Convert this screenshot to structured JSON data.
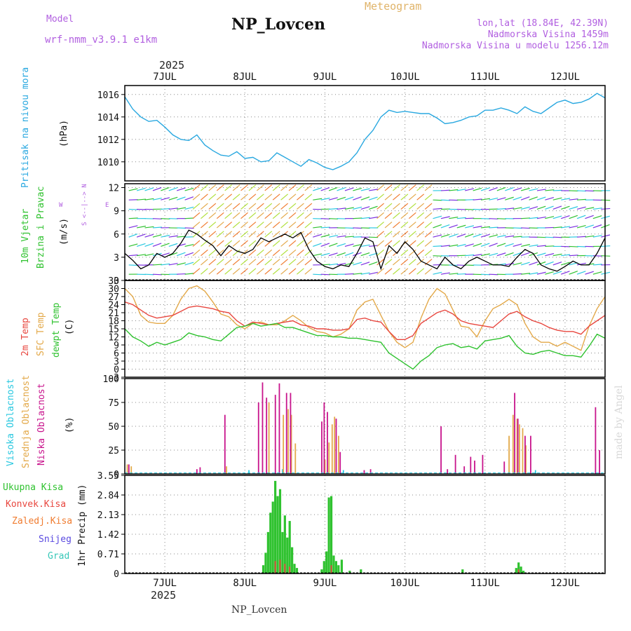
{
  "header": {
    "model_label": "Model",
    "model_name": "wrf-nmm_v3.9.1 e1km",
    "station": "NP_Lovcen",
    "meteogram": "Meteogram",
    "coords": "lon,lat (18.84E, 42.39N)",
    "elevation": "Nadmorska Visina 1459m",
    "model_elevation": "Nadmorska Visina u modelu 1256.12m",
    "year_top": "2025",
    "year_bottom": "2025",
    "footer": "NP_Lovcen",
    "credit": "made by Angel"
  },
  "days": [
    "7JUL",
    "8JUL",
    "9JUL",
    "10JUL",
    "11JUL",
    "12JUL"
  ],
  "panel_labels": {
    "pressure": [
      "Pritisak na nivou mora",
      "(hPa)"
    ],
    "wind": [
      "10m Vjetar",
      "Brzina i Pravac",
      "(m/s)"
    ],
    "wind_compass": [
      "S",
      "<--|-->",
      "N",
      "W",
      "E"
    ],
    "temp": [
      "2m Temp",
      "SFC Temp",
      "dewpt Temp",
      "(C)"
    ],
    "cloud": [
      "Visoka Oblacnost",
      "Srednja Oblacnost",
      "Niska Oblacnost",
      "(%)"
    ],
    "precip_legend": [
      "Ukupna Kisa",
      "Konvek.Kisa",
      "Zaledj.Kisa",
      "Snijeg",
      "Grad"
    ],
    "precip_unit": "1hr Precip (mm)"
  },
  "colors": {
    "pressure": "#29a8e0",
    "temp2m": "#e8473f",
    "sfc": "#e3a94a",
    "dewpt": "#2fc22f",
    "high_cloud": "#29c8e0",
    "mid_cloud": "#e3a94a",
    "low_cloud": "#c8148c",
    "total_rain": "#2fc22f",
    "conv_rain": "#e8473f",
    "frz_rain": "#f07c30",
    "snow": "#5a4ae0",
    "hail": "#38c8b8",
    "model": "#b15fe0"
  },
  "chart_data": [
    {
      "type": "line",
      "title": "Pritisak na nivou mora",
      "ylabel": "(hPa)",
      "x_unit": "day of July 2025",
      "ylim": [
        1008.3,
        1016.8
      ],
      "yticks": [
        1010,
        1012,
        1014,
        1016
      ],
      "series": [
        {
          "name": "Pritisak na nivou mora",
          "x": [
            6.5,
            6.6,
            6.7,
            6.8,
            6.9,
            7.0,
            7.1,
            7.2,
            7.3,
            7.4,
            7.5,
            7.6,
            7.7,
            7.8,
            7.9,
            8.0,
            8.1,
            8.2,
            8.3,
            8.4,
            8.5,
            8.6,
            8.7,
            8.8,
            8.9,
            9.0,
            9.1,
            9.2,
            9.3,
            9.4,
            9.5,
            9.6,
            9.7,
            9.8,
            9.9,
            10.0,
            10.1,
            10.2,
            10.3,
            10.4,
            10.5,
            10.6,
            10.7,
            10.8,
            10.9,
            11.0,
            11.1,
            11.2,
            11.3,
            11.4,
            11.5,
            11.6,
            11.7,
            11.8,
            11.9,
            12.0,
            12.1,
            12.2,
            12.3,
            12.4,
            12.5
          ],
          "y": [
            1015.8,
            1014.7,
            1014.0,
            1013.6,
            1013.7,
            1013.1,
            1012.4,
            1012.0,
            1011.9,
            1012.4,
            1011.5,
            1011.0,
            1010.6,
            1010.5,
            1010.9,
            1010.3,
            1010.4,
            1010.0,
            1010.1,
            1010.8,
            1010.4,
            1010.0,
            1009.6,
            1010.2,
            1009.9,
            1009.5,
            1009.3,
            1009.6,
            1010.0,
            1010.8,
            1012.0,
            1012.8,
            1014.0,
            1014.6,
            1014.4,
            1014.5,
            1014.4,
            1014.3,
            1014.3,
            1013.9,
            1013.4,
            1013.5,
            1013.7,
            1014.0,
            1014.1,
            1014.6,
            1014.6,
            1014.8,
            1014.6,
            1014.3,
            1014.9,
            1014.5,
            1014.3,
            1014.8,
            1015.3,
            1015.5,
            1015.2,
            1015.3,
            1015.6,
            1016.1,
            1015.7
          ]
        }
      ]
    },
    {
      "type": "line",
      "title": "10m Vjetar Brzina i Pravac",
      "ylabel": "(m/s)",
      "x_unit": "day of July 2025",
      "ylim": [
        0,
        12.5
      ],
      "yticks": [
        0,
        3,
        6,
        9,
        12
      ],
      "series": [
        {
          "name": "Brzina",
          "x": [
            6.5,
            6.6,
            6.7,
            6.8,
            6.9,
            7.0,
            7.1,
            7.2,
            7.3,
            7.4,
            7.5,
            7.6,
            7.7,
            7.8,
            7.9,
            8.0,
            8.1,
            8.2,
            8.3,
            8.4,
            8.5,
            8.6,
            8.7,
            8.8,
            8.9,
            9.0,
            9.1,
            9.2,
            9.3,
            9.4,
            9.5,
            9.6,
            9.7,
            9.8,
            9.9,
            10.0,
            10.1,
            10.2,
            10.3,
            10.4,
            10.5,
            10.6,
            10.7,
            10.8,
            10.9,
            11.0,
            11.1,
            11.2,
            11.3,
            11.4,
            11.5,
            11.6,
            11.7,
            11.8,
            11.9,
            12.0,
            12.1,
            12.2,
            12.3,
            12.4,
            12.5
          ],
          "y": [
            3.5,
            2.6,
            1.5,
            2.0,
            3.5,
            3.0,
            3.5,
            4.8,
            6.5,
            6.0,
            5.2,
            4.5,
            3.2,
            4.5,
            3.8,
            3.5,
            4.0,
            5.5,
            5.0,
            5.5,
            6.0,
            5.5,
            6.2,
            4.0,
            2.5,
            1.8,
            1.5,
            2.0,
            1.8,
            3.5,
            5.5,
            5.0,
            1.5,
            4.5,
            3.5,
            5.0,
            4.0,
            2.5,
            2.0,
            1.5,
            3.0,
            2.0,
            1.5,
            2.5,
            3.0,
            2.5,
            2.0,
            2.0,
            1.8,
            3.0,
            4.0,
            3.5,
            2.0,
            1.5,
            1.2,
            1.8,
            2.5,
            2.0,
            2.0,
            3.5,
            5.5
          ]
        }
      ]
    },
    {
      "type": "line",
      "title": "2m Temp, SFC Temp, dewpt Temp",
      "ylabel": "(C)",
      "x_unit": "day of July 2025",
      "ylim": [
        -3,
        33
      ],
      "yticks": [
        -3,
        0,
        3,
        6,
        9,
        12,
        15,
        18,
        21,
        24,
        27,
        30,
        33
      ],
      "x": [
        6.5,
        6.6,
        6.7,
        6.8,
        6.9,
        7.0,
        7.1,
        7.2,
        7.3,
        7.4,
        7.5,
        7.6,
        7.7,
        7.8,
        7.9,
        8.0,
        8.1,
        8.2,
        8.3,
        8.4,
        8.5,
        8.6,
        8.7,
        8.8,
        8.9,
        9.0,
        9.1,
        9.2,
        9.3,
        9.4,
        9.5,
        9.6,
        9.7,
        9.8,
        9.9,
        10.0,
        10.1,
        10.2,
        10.3,
        10.4,
        10.5,
        10.6,
        10.7,
        10.8,
        10.9,
        11.0,
        11.1,
        11.2,
        11.3,
        11.4,
        11.5,
        11.6,
        11.7,
        11.8,
        11.9,
        12.0,
        12.1,
        12.2,
        12.3,
        12.4,
        12.5
      ],
      "series": [
        {
          "name": "2m Temp",
          "y": [
            25.0,
            24.0,
            22.0,
            20.0,
            19.0,
            19.5,
            20.0,
            21.5,
            23.0,
            23.5,
            23.0,
            22.5,
            21.5,
            21.0,
            18.0,
            16.0,
            17.5,
            17.0,
            16.5,
            17.0,
            17.5,
            18.0,
            16.5,
            16.0,
            15.0,
            15.0,
            14.5,
            14.5,
            15.0,
            18.5,
            19.0,
            18.0,
            17.5,
            14.0,
            11.0,
            11.0,
            12.5,
            17.0,
            19.0,
            21.0,
            22.0,
            20.5,
            18.0,
            17.0,
            16.5,
            16.0,
            15.5,
            18.0,
            20.5,
            21.5,
            19.5,
            18.0,
            17.0,
            15.5,
            14.5,
            14.0,
            14.0,
            13.0,
            16.0,
            18.0,
            20.0
          ]
        },
        {
          "name": "SFC Temp",
          "y": [
            30.0,
            27.0,
            20.0,
            17.5,
            17.0,
            17.0,
            20.0,
            26.0,
            30.0,
            31.0,
            29.0,
            25.0,
            20.5,
            19.5,
            16.5,
            15.0,
            17.0,
            17.5,
            16.5,
            16.5,
            18.0,
            20.0,
            18.0,
            15.5,
            14.0,
            13.5,
            12.0,
            13.0,
            15.0,
            22.0,
            25.0,
            26.0,
            20.0,
            14.0,
            10.0,
            8.0,
            10.0,
            19.0,
            26.0,
            30.0,
            28.0,
            22.0,
            16.0,
            15.5,
            12.0,
            18.0,
            22.5,
            24.0,
            26.0,
            24.0,
            17.0,
            12.0,
            10.0,
            10.0,
            8.5,
            10.0,
            8.5,
            7.0,
            16.0,
            22.5,
            27.0
          ]
        },
        {
          "name": "dewpt Temp",
          "y": [
            15.0,
            12.0,
            10.5,
            8.5,
            10.0,
            9.0,
            10.0,
            11.0,
            13.5,
            12.5,
            12.0,
            11.0,
            10.5,
            13.0,
            15.5,
            16.0,
            17.0,
            16.0,
            16.5,
            17.0,
            15.5,
            15.5,
            14.5,
            13.5,
            12.5,
            12.5,
            12.0,
            12.0,
            11.5,
            11.5,
            11.0,
            10.5,
            10.0,
            6.0,
            4.0,
            2.0,
            0.0,
            3.0,
            5.0,
            8.0,
            9.0,
            9.5,
            8.0,
            8.5,
            7.5,
            10.5,
            11.0,
            11.5,
            12.5,
            8.5,
            6.0,
            5.5,
            6.5,
            7.0,
            6.0,
            5.0,
            5.0,
            4.5,
            8.5,
            13.0,
            11.5
          ]
        }
      ]
    },
    {
      "type": "bar",
      "title": "Visoka Oblacnost, Srednja Oblacnost, Niska Oblacnost",
      "ylabel": "(%)",
      "x_unit": "day of July 2025",
      "ylim": [
        0,
        100
      ],
      "yticks": [
        0,
        25,
        50,
        75,
        100
      ],
      "series": [
        {
          "name": "Visoka Oblacnost",
          "x": [
            6.53,
            8.05,
            8.47,
            9.23,
            10.45,
            11.63
          ],
          "y": [
            3,
            4,
            5,
            4,
            3,
            4
          ]
        },
        {
          "name": "Srednja Oblacnost",
          "x": [
            6.53,
            6.58,
            7.77,
            8.3,
            8.48,
            8.54,
            8.58,
            8.63,
            9.0,
            9.05,
            9.09,
            9.12,
            9.17,
            11.3,
            11.35,
            11.4,
            11.43,
            11.47,
            11.51
          ],
          "y": [
            10,
            8,
            8,
            75,
            62,
            68,
            62,
            32,
            15,
            33,
            52,
            60,
            40,
            40,
            62,
            58,
            52,
            48,
            30
          ]
        },
        {
          "name": "Niska Oblacnost",
          "x": [
            6.55,
            7.4,
            7.44,
            7.75,
            8.17,
            8.22,
            8.27,
            8.38,
            8.43,
            8.52,
            8.57,
            8.96,
            8.99,
            9.03,
            9.14,
            9.19,
            9.49,
            9.57,
            10.45,
            10.53,
            10.63,
            10.74,
            10.82,
            10.87,
            10.97,
            11.24,
            11.37,
            11.41,
            11.5,
            11.57,
            12.38,
            12.43
          ],
          "y": [
            10,
            5,
            7,
            62,
            75,
            96,
            80,
            83,
            95,
            85,
            85,
            55,
            75,
            65,
            58,
            23,
            4,
            5,
            50,
            5,
            20,
            8,
            18,
            14,
            20,
            13,
            85,
            58,
            40,
            40,
            70,
            25
          ]
        }
      ]
    },
    {
      "type": "bar",
      "title": "1hr Precip",
      "ylabel": "1hr Precip (mm)",
      "x_unit": "day of July 2025",
      "ylim": [
        0,
        3.55
      ],
      "yticks": [
        0,
        0.71,
        1.42,
        2.13,
        2.84,
        3.55
      ],
      "series": [
        {
          "name": "Ukupna Kisa",
          "x": [
            8.23,
            8.26,
            8.29,
            8.32,
            8.35,
            8.38,
            8.41,
            8.44,
            8.47,
            8.5,
            8.53,
            8.56,
            8.59,
            8.62,
            8.65,
            8.96,
            8.99,
            9.02,
            9.05,
            9.08,
            9.11,
            9.14,
            9.17,
            9.21,
            9.31,
            9.45,
            10.72,
            11.39,
            11.42,
            11.45,
            11.48
          ],
          "y": [
            0.3,
            0.75,
            1.5,
            2.2,
            2.6,
            3.35,
            2.8,
            3.05,
            1.5,
            2.1,
            1.3,
            1.9,
            0.95,
            0.35,
            0.2,
            0.15,
            0.45,
            0.8,
            2.75,
            2.8,
            0.65,
            0.45,
            0.3,
            0.5,
            0.1,
            0.15,
            0.15,
            0.2,
            0.4,
            0.25,
            0.1
          ]
        },
        {
          "name": "Konvek.Kisa",
          "x": [
            8.38,
            8.44,
            8.5,
            8.56,
            9.08,
            11.42
          ],
          "y": [
            0.45,
            0.5,
            0.35,
            0.25,
            0.3,
            0.15
          ]
        },
        {
          "name": "Zaledj.Kisa",
          "x": [],
          "y": []
        },
        {
          "name": "Snijeg",
          "x": [],
          "y": []
        },
        {
          "name": "Grad",
          "x": [],
          "y": []
        }
      ]
    }
  ]
}
